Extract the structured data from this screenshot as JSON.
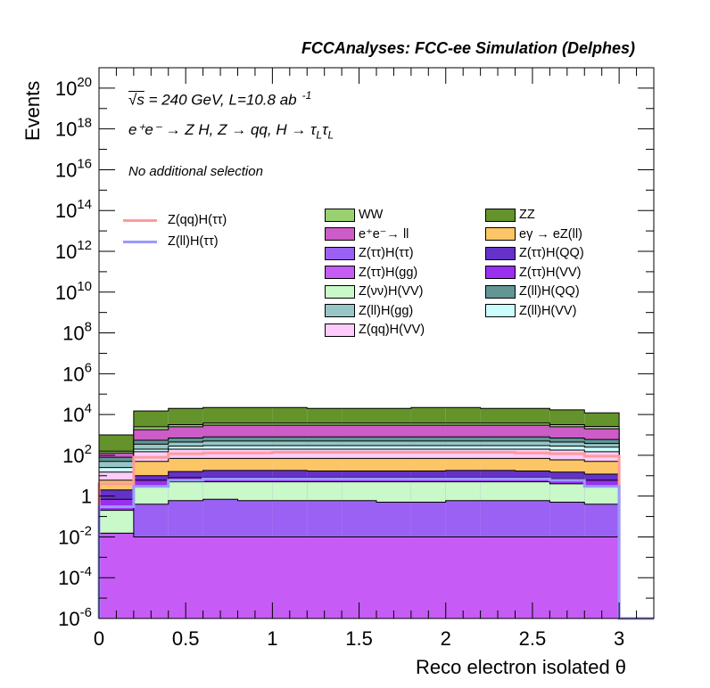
{
  "header": {
    "title": "FCCAnalyses: FCC-ee Simulation (Delphes)"
  },
  "annotations": {
    "energy_sqrt": "√s",
    "energy_rest": " = 240 GeV, L=10.8 ab",
    "lumi_exponent": "-1",
    "process": "e⁺e⁻ → Z H, Z → qq, H → τ",
    "process_sub_1": "L",
    "process_tau_2": "τ",
    "process_sub_2": "L",
    "selection": "No additional selection"
  },
  "colors": {
    "WW": "#99d170",
    "ZZ": "#64922b",
    "ee_ll": "#cc5cc7",
    "egamma_eZll": "#fcc667",
    "Ztautau_Htautau": "#9b61f5",
    "Ztautau_HQQ": "#6432c8",
    "Ztautau_Hgg": "#c65cf5",
    "Ztautau_HVV": "#9a2fef",
    "Znunu_HVV": "#c9f8c9",
    "Zll_HQQ": "#619695",
    "Zll_Hgg": "#97c6c7",
    "Zll_HVV": "#cbfdfd",
    "Zqq_HVV": "#fdccfa",
    "Zqq_Htautau_line": "#ff9a9a",
    "Zll_Htautau_line": "#9a9aff"
  },
  "chart_data": {
    "type": "area",
    "title": "FCCAnalyses: FCC-ee Simulation (Delphes)",
    "xlabel": "Reco electron isolated θ",
    "ylabel": "Events",
    "xlim": [
      0,
      3.2
    ],
    "ylim": [
      1e-06,
      1e+21
    ],
    "log_y": true,
    "x_ticks": [
      "0",
      "0.5",
      "1",
      "1.5",
      "2",
      "2.5",
      "3"
    ],
    "y_ticks": [
      {
        "base": "10",
        "exp": "-6"
      },
      {
        "base": "10",
        "exp": "-4"
      },
      {
        "base": "10",
        "exp": "-2"
      },
      {
        "base": "1",
        "exp": ""
      },
      {
        "base": "10",
        "exp": "2"
      },
      {
        "base": "10",
        "exp": "4"
      },
      {
        "base": "10",
        "exp": "6"
      },
      {
        "base": "10",
        "exp": "8"
      },
      {
        "base": "10",
        "exp": "10"
      },
      {
        "base": "10",
        "exp": "12"
      },
      {
        "base": "10",
        "exp": "14"
      },
      {
        "base": "10",
        "exp": "16"
      },
      {
        "base": "10",
        "exp": "18"
      },
      {
        "base": "10",
        "exp": "20"
      }
    ],
    "bin_edges": [
      0,
      0.2,
      0.4,
      0.6,
      0.8,
      1.0,
      1.2,
      1.4,
      1.6,
      1.8,
      2.0,
      2.2,
      2.4,
      2.6,
      2.8,
      3.0
    ],
    "stacked_cumulative": [
      {
        "name": "Z(ττ)H(gg)",
        "color_key": "Ztautau_Hgg",
        "values": [
          0.015,
          0.01,
          0.01,
          0.01,
          0.01,
          0.01,
          0.01,
          0.01,
          0.01,
          0.01,
          0.01,
          0.01,
          0.01,
          0.01,
          0.01
        ]
      },
      {
        "name": "Z(ττ)H(ττ)",
        "color_key": "Ztautau_Htautau",
        "values": [
          0.015,
          0.4,
          0.6,
          0.7,
          0.6,
          0.6,
          0.6,
          0.6,
          0.5,
          0.5,
          0.6,
          0.6,
          0.6,
          0.5,
          0.4
        ]
      },
      {
        "name": "Z(νν)H(VV)",
        "color_key": "Znunu_HVV",
        "values": [
          0.2,
          3,
          5,
          5,
          5,
          5,
          5,
          5,
          5,
          5,
          5,
          5,
          5,
          4,
          3
        ]
      },
      {
        "name": "Z(ττ)H(VV)",
        "color_key": "Ztautau_HVV",
        "values": [
          0.7,
          6,
          8,
          8,
          8,
          8,
          8,
          8,
          8,
          8,
          8,
          8,
          8,
          7,
          6
        ]
      },
      {
        "name": "Z(ττ)H(QQ)",
        "color_key": "Ztautau_HQQ",
        "values": [
          2,
          10,
          16,
          18,
          18,
          18,
          17,
          17,
          17,
          17,
          18,
          18,
          17,
          15,
          12
        ]
      },
      {
        "name": "eγ → eZ(ll)",
        "color_key": "egamma_eZll",
        "values": [
          6,
          50,
          70,
          70,
          70,
          70,
          70,
          70,
          70,
          70,
          70,
          70,
          70,
          60,
          50
        ]
      },
      {
        "name": "Z(qq)H(VV)",
        "color_key": "Zqq_HVV",
        "values": [
          15,
          150,
          200,
          200,
          200,
          200,
          200,
          200,
          200,
          200,
          200,
          200,
          200,
          180,
          150
        ]
      },
      {
        "name": "Z(ll)H(VV)",
        "color_key": "Zll_HVV",
        "values": [
          25,
          200,
          280,
          300,
          300,
          300,
          300,
          300,
          300,
          300,
          300,
          300,
          300,
          280,
          250
        ]
      },
      {
        "name": "Z(ll)H(gg)",
        "color_key": "Zll_Hgg",
        "values": [
          50,
          350,
          450,
          500,
          500,
          500,
          500,
          500,
          500,
          500,
          500,
          500,
          500,
          450,
          380
        ]
      },
      {
        "name": "Z(ll)H(QQ)",
        "color_key": "Zll_HQQ",
        "values": [
          80,
          550,
          700,
          800,
          800,
          800,
          800,
          800,
          800,
          800,
          800,
          800,
          800,
          700,
          600
        ]
      },
      {
        "name": "e⁺e⁻→ ll",
        "color_key": "ee_ll",
        "values": [
          130,
          1800,
          2500,
          3000,
          3000,
          3000,
          3000,
          3000,
          3000,
          3000,
          3000,
          3000,
          3000,
          2500,
          2000
        ]
      },
      {
        "name": "WW",
        "color_key": "WW",
        "values": [
          160,
          2500,
          3200,
          3800,
          3800,
          3800,
          3800,
          3800,
          3800,
          3800,
          3800,
          3800,
          3800,
          3200,
          2600
        ]
      },
      {
        "name": "ZZ",
        "color_key": "ZZ",
        "values": [
          1000,
          15000,
          20000,
          22000,
          22000,
          22000,
          20000,
          20000,
          20000,
          22000,
          22000,
          20000,
          20000,
          17000,
          12000
        ]
      }
    ],
    "lines": [
      {
        "name": "Z(qq)H(ττ)",
        "color_key": "Zqq_Htautau_line",
        "values": [
          4,
          80,
          120,
          130,
          130,
          140,
          140,
          140,
          140,
          140,
          140,
          140,
          130,
          120,
          90
        ]
      },
      {
        "name": "Z(ll)H(ττ)",
        "color_key": "Zll_Htautau_line",
        "values": [
          0.3,
          3,
          6,
          7,
          7,
          7,
          7,
          7,
          7,
          7,
          7,
          7,
          7,
          6,
          3
        ]
      }
    ],
    "legend_lines": [
      {
        "name": "Z(qq)H(ττ)",
        "color_key": "Zqq_Htautau_line"
      },
      {
        "name": "Z(ll)H(ττ)",
        "color_key": "Zll_Htautau_line"
      }
    ],
    "legend_boxes": [
      {
        "name": "WW",
        "color_key": "WW"
      },
      {
        "name": "ZZ",
        "color_key": "ZZ"
      },
      {
        "name": "e⁺e⁻→ ll",
        "color_key": "ee_ll"
      },
      {
        "name": "eγ → eZ(ll)",
        "color_key": "egamma_eZll"
      },
      {
        "name": "Z(ττ)H(ττ)",
        "color_key": "Ztautau_Htautau"
      },
      {
        "name": "Z(ττ)H(QQ)",
        "color_key": "Ztautau_HQQ"
      },
      {
        "name": "Z(ττ)H(gg)",
        "color_key": "Ztautau_Hgg"
      },
      {
        "name": "Z(ττ)H(VV)",
        "color_key": "Ztautau_HVV"
      },
      {
        "name": "Z(νν)H(VV)",
        "color_key": "Znunu_HVV"
      },
      {
        "name": "Z(ll)H(QQ)",
        "color_key": "Zll_HQQ"
      },
      {
        "name": "Z(ll)H(gg)",
        "color_key": "Zll_Hgg"
      },
      {
        "name": "Z(ll)H(VV)",
        "color_key": "Zll_HVV"
      },
      {
        "name": "Z(qq)H(VV)",
        "color_key": "Zqq_HVV"
      }
    ]
  }
}
